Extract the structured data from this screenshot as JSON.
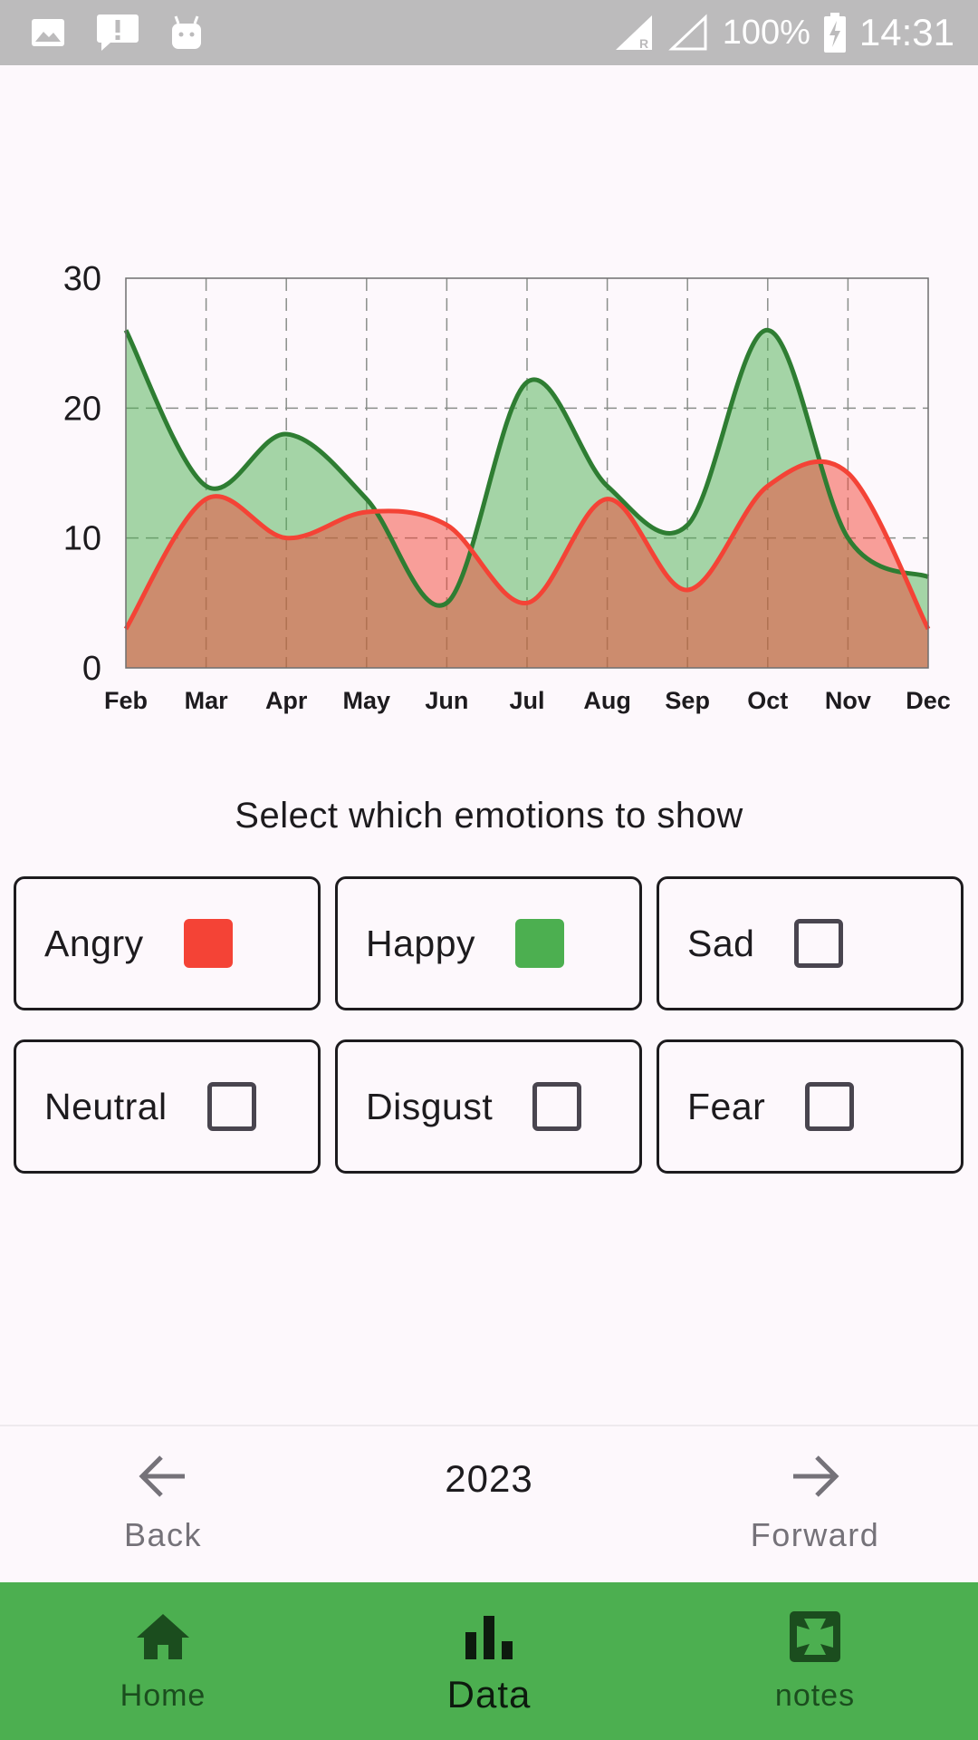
{
  "status_bar": {
    "battery": "100%",
    "time": "14:31",
    "icons": [
      "image-icon",
      "alert-icon",
      "android-icon",
      "signal-icon",
      "signal-empty-icon",
      "battery-charging-icon"
    ]
  },
  "chart_data": {
    "type": "area",
    "categories": [
      "Feb",
      "Mar",
      "Apr",
      "May",
      "Jun",
      "Jul",
      "Aug",
      "Sep",
      "Oct",
      "Nov",
      "Dec"
    ],
    "ylim": [
      0,
      30
    ],
    "yticks": [
      "0",
      "10",
      "20",
      "30"
    ],
    "grid": true,
    "series": [
      {
        "key": "happy",
        "color": "#2e7d32",
        "fill": "#4caf50",
        "values": [
          26,
          14,
          18,
          13,
          5,
          22,
          14,
          11,
          26,
          10,
          7
        ]
      },
      {
        "key": "angry",
        "color": "#f44336",
        "fill": "#f44336",
        "values": [
          3,
          13,
          10,
          12,
          11,
          5,
          13,
          6,
          14,
          15,
          3
        ]
      }
    ]
  },
  "prompt": "Select which emotions to show",
  "emotions": [
    {
      "label": "Angry",
      "checked": true,
      "color": "#f44336"
    },
    {
      "label": "Happy",
      "checked": true,
      "color": "#4caf50"
    },
    {
      "label": "Sad",
      "checked": false,
      "color": ""
    },
    {
      "label": "Neutral",
      "checked": false,
      "color": ""
    },
    {
      "label": "Disgust",
      "checked": false,
      "color": ""
    },
    {
      "label": "Fear",
      "checked": false,
      "color": ""
    }
  ],
  "year_nav": {
    "back_label": "Back",
    "year": "2023",
    "forward_label": "Forward"
  },
  "bottom_nav": {
    "home_label": "Home",
    "data_label": "Data",
    "notes_label": "notes",
    "active": "data"
  }
}
